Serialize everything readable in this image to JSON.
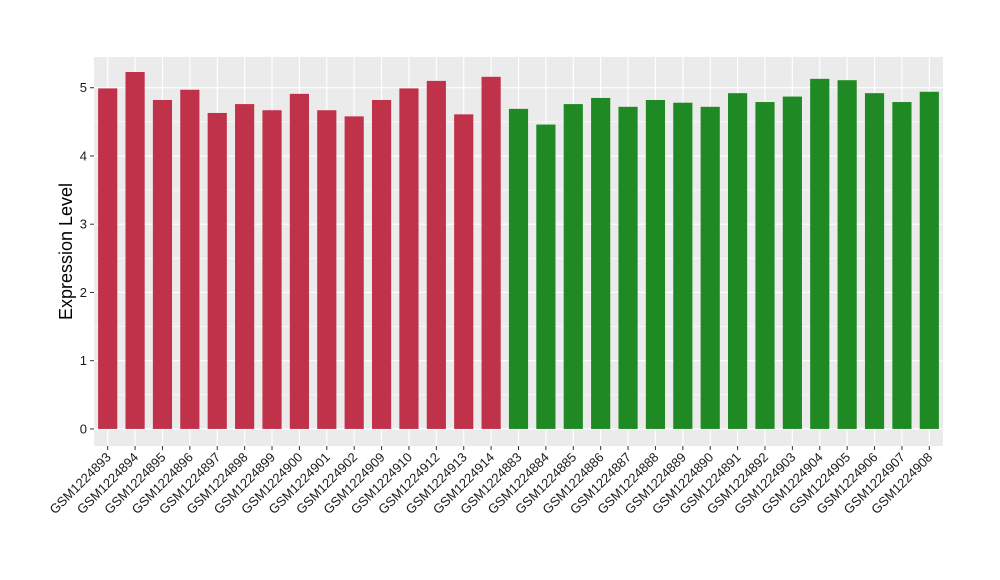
{
  "chart_data": {
    "type": "bar",
    "ylabel": "Expression Level",
    "xlabel": "",
    "ylim": [
      -0.25,
      5.45
    ],
    "yticks": [
      0,
      1,
      2,
      3,
      4,
      5
    ],
    "grid": true,
    "categories": [
      "GSM1224893",
      "GSM1224894",
      "GSM1224895",
      "GSM1224896",
      "GSM1224897",
      "GSM1224898",
      "GSM1224899",
      "GSM1224900",
      "GSM1224901",
      "GSM1224902",
      "GSM1224909",
      "GSM1224910",
      "GSM1224912",
      "GSM1224913",
      "GSM1224914",
      "GSM1224883",
      "GSM1224884",
      "GSM1224885",
      "GSM1224886",
      "GSM1224887",
      "GSM1224888",
      "GSM1224889",
      "GSM1224890",
      "GSM1224891",
      "GSM1224892",
      "GSM1224903",
      "GSM1224904",
      "GSM1224905",
      "GSM1224906",
      "GSM1224907",
      "GSM1224908"
    ],
    "values": [
      4.99,
      5.23,
      4.82,
      4.97,
      4.63,
      4.76,
      4.67,
      4.91,
      4.67,
      4.58,
      4.82,
      4.99,
      5.1,
      4.61,
      5.16,
      4.69,
      4.46,
      4.76,
      4.85,
      4.72,
      4.82,
      4.78,
      4.72,
      4.92,
      4.79,
      4.87,
      5.13,
      5.11,
      4.92,
      4.79,
      4.94
    ],
    "group_colors": [
      "#c0314a",
      "#1f8a24"
    ],
    "bar_groups": [
      0,
      0,
      0,
      0,
      0,
      0,
      0,
      0,
      0,
      0,
      0,
      0,
      0,
      0,
      0,
      1,
      1,
      1,
      1,
      1,
      1,
      1,
      1,
      1,
      1,
      1,
      1,
      1,
      1,
      1,
      1
    ],
    "panel_background": "#ebebeb",
    "grid_color": "#ffffff"
  }
}
